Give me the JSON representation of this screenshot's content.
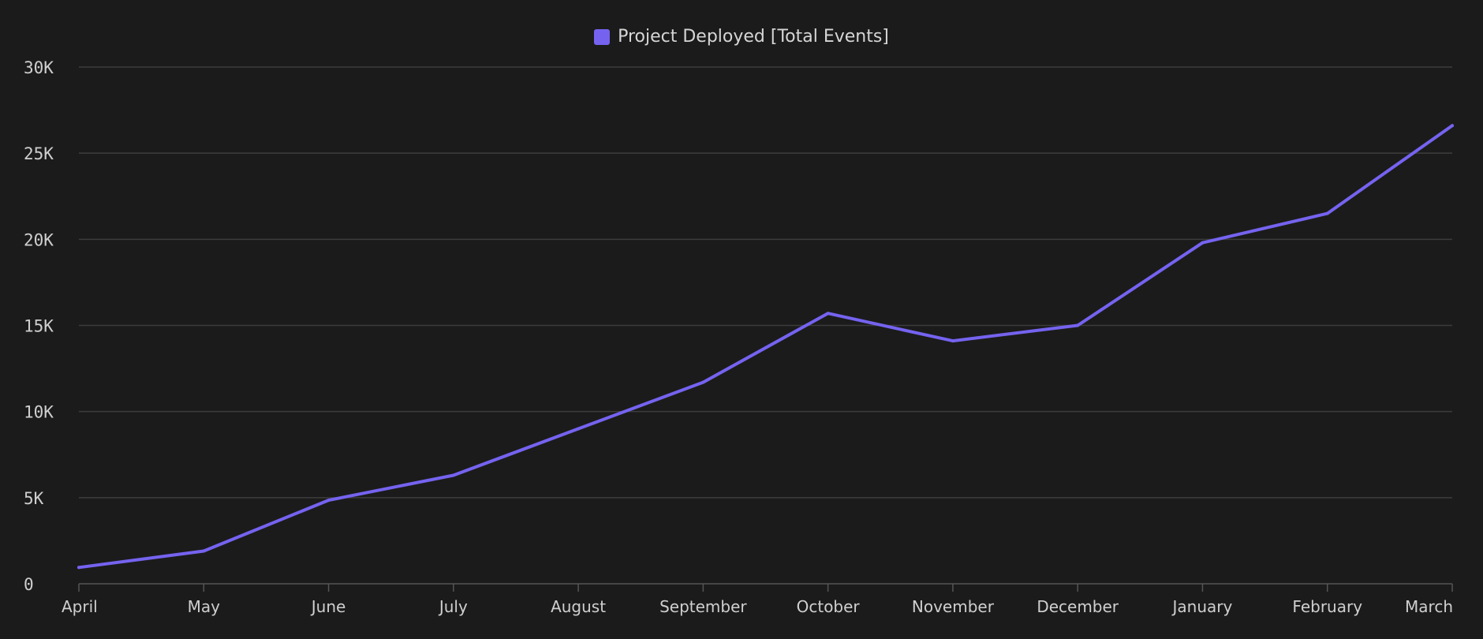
{
  "chart_data": {
    "type": "line",
    "categories": [
      "April",
      "May",
      "June",
      "July",
      "August",
      "September",
      "October",
      "November",
      "December",
      "January",
      "February",
      "March"
    ],
    "series": [
      {
        "name": "Project Deployed [Total Events]",
        "color": "#7563f0",
        "values": [
          950,
          1900,
          4850,
          6300,
          9000,
          11700,
          15700,
          14100,
          15000,
          19800,
          21500,
          26600
        ]
      }
    ],
    "y_ticks": [
      "0",
      "5K",
      "10K",
      "15K",
      "20K",
      "25K",
      "30K"
    ],
    "ylim": [
      0,
      30000
    ],
    "grid": true,
    "legend_position": "top-center",
    "title": "",
    "xlabel": "",
    "ylabel": ""
  },
  "colors": {
    "background": "#1b1b1b",
    "grid": "#3c3c3c",
    "axis": "#555555",
    "text": "#cfcfcf"
  }
}
